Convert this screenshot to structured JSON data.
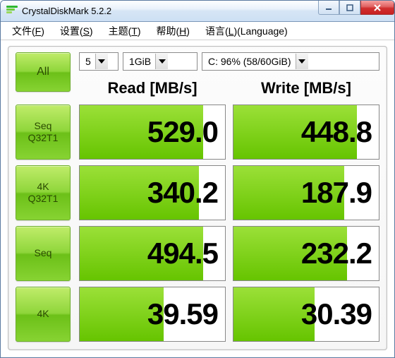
{
  "window": {
    "title": "CrystalDiskMark 5.2.2"
  },
  "menu": {
    "file": {
      "label": "文件",
      "key": "F"
    },
    "config": {
      "label": "设置",
      "key": "S"
    },
    "theme": {
      "label": "主题",
      "key": "T"
    },
    "help": {
      "label": "帮助",
      "key": "H"
    },
    "lang": {
      "label": "语言",
      "key": "L",
      "suffix": "(Language)"
    }
  },
  "controls": {
    "all_label": "All",
    "run_count": "5",
    "test_size": "1GiB",
    "drive": "C: 96% (58/60GiB)"
  },
  "headers": {
    "read": "Read [MB/s]",
    "write": "Write [MB/s]"
  },
  "rows": [
    {
      "label_line1": "Seq",
      "label_line2": "Q32T1",
      "read": "529.0",
      "read_fill_pct": 85,
      "write": "448.8",
      "write_fill_pct": 85
    },
    {
      "label_line1": "4K",
      "label_line2": "Q32T1",
      "read": "340.2",
      "read_fill_pct": 82,
      "write": "187.9",
      "write_fill_pct": 76
    },
    {
      "label_line1": "Seq",
      "label_line2": "",
      "read": "494.5",
      "read_fill_pct": 85,
      "write": "232.2",
      "write_fill_pct": 78
    },
    {
      "label_line1": "4K",
      "label_line2": "",
      "read": "39.59",
      "read_fill_pct": 58,
      "write": "30.39",
      "write_fill_pct": 56
    }
  ],
  "colors": {
    "green_grad_top": "#c0ec6a",
    "green_grad_bottom": "#6cc018",
    "fill_top": "#9be038",
    "fill_bottom": "#66c400",
    "titlebar_top": "#fdfeff",
    "titlebar_bottom": "#cde0f4",
    "close_red": "#d03030"
  }
}
